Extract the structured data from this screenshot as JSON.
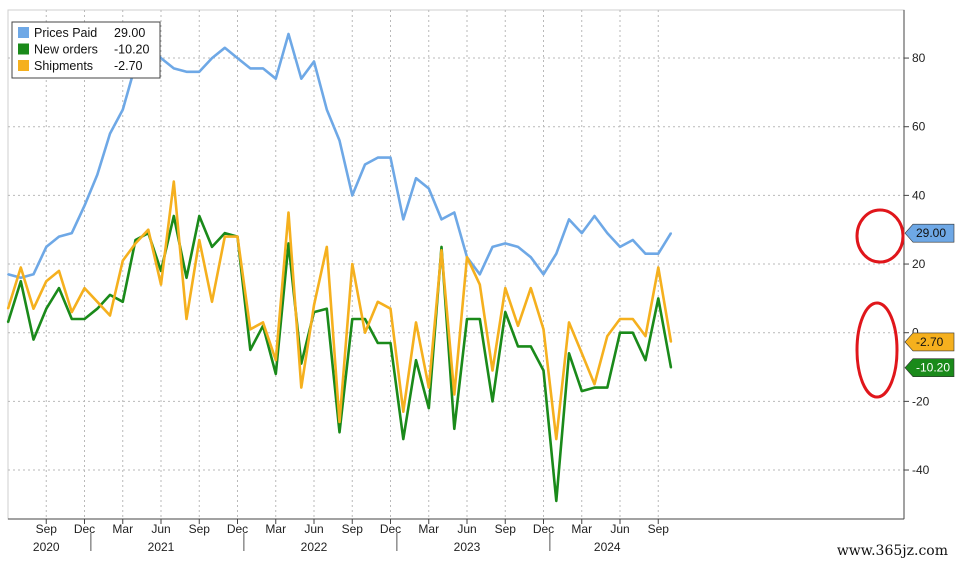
{
  "chart_data": {
    "type": "line",
    "x": [
      "2020-06",
      "2020-07",
      "2020-08",
      "2020-09",
      "2020-10",
      "2020-11",
      "2020-12",
      "2021-01",
      "2021-02",
      "2021-03",
      "2021-04",
      "2021-05",
      "2021-06",
      "2021-07",
      "2021-08",
      "2021-09",
      "2021-10",
      "2021-11",
      "2021-12",
      "2022-01",
      "2022-02",
      "2022-03",
      "2022-04",
      "2022-05",
      "2022-06",
      "2022-07",
      "2022-08",
      "2022-09",
      "2022-10",
      "2022-11",
      "2022-12",
      "2023-01",
      "2023-02",
      "2023-03",
      "2023-04",
      "2023-05",
      "2023-06",
      "2023-07",
      "2023-08",
      "2023-09",
      "2023-10",
      "2023-11",
      "2023-12",
      "2024-01",
      "2024-02",
      "2024-03",
      "2024-04",
      "2024-05",
      "2024-06",
      "2024-07",
      "2024-08",
      "2024-09",
      "2024-10"
    ],
    "series": [
      {
        "name": "Prices Paid",
        "color": "#6ea8e6",
        "values": [
          17,
          16,
          17,
          25,
          28,
          29,
          37,
          46,
          58,
          65,
          78,
          84,
          80,
          77,
          76,
          76,
          80,
          83,
          80,
          77,
          77,
          74,
          87,
          74,
          79,
          65,
          56,
          40,
          49,
          51,
          51,
          33,
          45,
          42,
          33,
          35,
          22,
          17,
          25,
          26,
          25,
          22,
          17,
          23,
          33,
          29,
          34,
          29,
          25,
          27,
          23,
          23,
          29
        ]
      },
      {
        "name": "New orders",
        "color": "#1a8a1a",
        "values": [
          3,
          15,
          -2,
          7,
          13,
          4,
          4,
          7,
          11,
          9,
          27,
          29,
          18,
          34,
          16,
          34,
          25,
          29,
          28,
          -5,
          2,
          -12,
          26,
          -9,
          6,
          7,
          -29,
          4,
          4,
          -3,
          -3,
          -31,
          -8,
          -22,
          25,
          -28,
          4,
          4,
          -20,
          6,
          -4,
          -4,
          -11,
          -49,
          -6,
          -17,
          -16,
          -16,
          0,
          0,
          -8,
          10,
          -10.2
        ]
      },
      {
        "name": "Shipments",
        "color": "#f5b01e",
        "values": [
          7,
          19,
          7,
          15,
          18,
          6,
          13,
          9,
          5,
          21,
          26,
          30,
          14,
          44,
          4,
          27,
          9,
          28,
          28,
          1,
          3,
          -8,
          35,
          -16,
          8,
          25,
          -26,
          20,
          0,
          9,
          7,
          -23,
          3,
          -16,
          24,
          -18,
          22,
          14,
          -11,
          13,
          2,
          13,
          1,
          -31,
          3,
          -6,
          -15,
          -1,
          4,
          4,
          -1,
          19,
          -2.7
        ]
      }
    ],
    "legend": [
      {
        "label": "Prices Paid",
        "value": "29.00",
        "color": "#6ea8e6"
      },
      {
        "label": "New orders",
        "value": "-10.20",
        "color": "#1a8a1a"
      },
      {
        "label": "Shipments",
        "value": "-2.70",
        "color": "#f5b01e"
      }
    ],
    "legend_position": "top-left",
    "end_labels": [
      {
        "text": "29.00",
        "series": "Prices Paid",
        "bg": "#6ea8e6",
        "fg": "#111111"
      },
      {
        "text": "-2.70",
        "series": "Shipments",
        "bg": "#f5b01e",
        "fg": "#111111"
      },
      {
        "text": "-10.20",
        "series": "New orders",
        "bg": "#1a8a1a",
        "fg": "#ffffff"
      }
    ],
    "y_ticks": [
      80,
      60,
      40,
      20,
      0,
      -20,
      -40
    ],
    "y_tick_labels": [
      "80",
      "60",
      "40",
      "20",
      "0",
      "-20",
      "-40"
    ],
    "ylim": [
      -55,
      95
    ],
    "month_ticks": [
      {
        "label": "Sep",
        "x": "2020-09"
      },
      {
        "label": "Dec",
        "x": "2020-12"
      },
      {
        "label": "Mar",
        "x": "2021-03"
      },
      {
        "label": "Jun",
        "x": "2021-06"
      },
      {
        "label": "Sep",
        "x": "2021-09"
      },
      {
        "label": "Dec",
        "x": "2021-12"
      },
      {
        "label": "Mar",
        "x": "2022-03"
      },
      {
        "label": "Jun",
        "x": "2022-06"
      },
      {
        "label": "Sep",
        "x": "2022-09"
      },
      {
        "label": "Dec",
        "x": "2022-12"
      },
      {
        "label": "Mar",
        "x": "2023-03"
      },
      {
        "label": "Jun",
        "x": "2023-06"
      },
      {
        "label": "Sep",
        "x": "2023-09"
      },
      {
        "label": "Dec",
        "x": "2023-12"
      },
      {
        "label": "Mar",
        "x": "2024-03"
      },
      {
        "label": "Jun",
        "x": "2024-06"
      },
      {
        "label": "Sep",
        "x": "2024-09"
      }
    ],
    "year_labels": [
      {
        "label": "2020",
        "x": "2020-09"
      },
      {
        "label": "2021",
        "x": "2021-06"
      },
      {
        "label": "2022",
        "x": "2022-06"
      },
      {
        "label": "2023",
        "x": "2023-06"
      },
      {
        "label": "2024",
        "x": "2024-05"
      }
    ],
    "grid": true,
    "annotations": [
      "red circle around latest Prices Paid value",
      "red oval around latest New orders and Shipments values"
    ]
  },
  "watermark": "www.365jz.com"
}
